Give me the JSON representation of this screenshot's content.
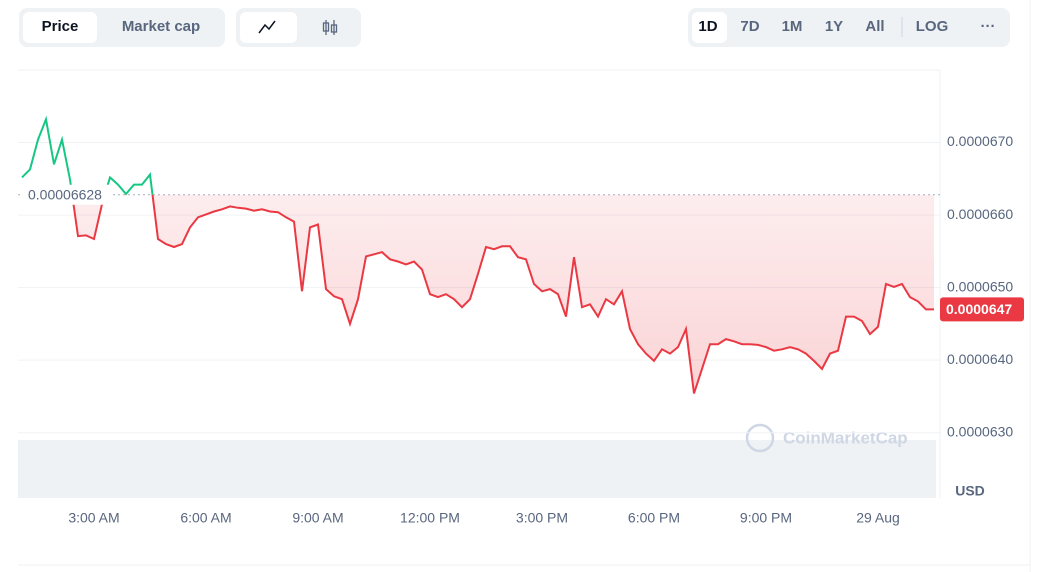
{
  "controls": {
    "tabs": [
      "Price",
      "Market cap"
    ],
    "ranges": [
      "1D",
      "7D",
      "1M",
      "1Y",
      "All",
      "LOG"
    ],
    "more": "···"
  },
  "watermark": "CoinMarketCap",
  "chart_data": {
    "type": "line",
    "ylabel": "USD",
    "ylim": [
      6.21e-05,
      6.8e-05
    ],
    "yticks": [
      {
        "value": 6.3e-05,
        "label": "0.0000630"
      },
      {
        "value": 6.4e-05,
        "label": "0.0000640"
      },
      {
        "value": 6.5e-05,
        "label": "0.0000650"
      },
      {
        "value": 6.6e-05,
        "label": "0.0000660"
      },
      {
        "value": 6.7e-05,
        "label": "0.0000670"
      }
    ],
    "grid": true,
    "baseline": 6.628e-05,
    "color_above": "#16c784",
    "color_below": "#ea3943",
    "categories": [
      null,
      null,
      null,
      null,
      null,
      null,
      null,
      null,
      null,
      "3:00 AM",
      null,
      null,
      null,
      null,
      null,
      null,
      null,
      null,
      null,
      null,
      null,
      null,
      null,
      "6:00 AM",
      null,
      null,
      null,
      null,
      null,
      null,
      null,
      null,
      null,
      null,
      null,
      null,
      null,
      "9:00 AM",
      null,
      null,
      null,
      null,
      null,
      null,
      null,
      null,
      null,
      null,
      null,
      null,
      null,
      "12:00 PM",
      null,
      null,
      null,
      null,
      null,
      null,
      null,
      null,
      null,
      null,
      null,
      null,
      null,
      "3:00 PM",
      null,
      null,
      null,
      null,
      null,
      null,
      null,
      null,
      null,
      null,
      null,
      null,
      null,
      "6:00 PM",
      null,
      null,
      null,
      null,
      null,
      null,
      null,
      null,
      null,
      null,
      null,
      null,
      null,
      "9:00 PM",
      null,
      null,
      null,
      null,
      null,
      null,
      null,
      null,
      null,
      null,
      null,
      null,
      null,
      "29 Aug",
      null,
      null,
      null,
      null,
      null,
      null,
      null
    ],
    "series": [
      {
        "name": "Price",
        "values": [
          6.652e-05,
          6.663e-05,
          6.704e-05,
          6.732e-05,
          6.67e-05,
          6.704e-05,
          6.649e-05,
          6.571e-05,
          6.572e-05,
          6.567e-05,
          6.615e-05,
          6.652e-05,
          6.642e-05,
          6.629e-05,
          6.642e-05,
          6.642e-05,
          6.656e-05,
          6.567e-05,
          6.56e-05,
          6.556e-05,
          6.56e-05,
          6.583e-05,
          6.597e-05,
          6.601e-05,
          6.605e-05,
          6.608e-05,
          6.612e-05,
          6.61e-05,
          6.609e-05,
          6.606e-05,
          6.608e-05,
          6.605e-05,
          6.604e-05,
          6.597e-05,
          6.591e-05,
          6.495e-05,
          6.583e-05,
          6.587e-05,
          6.498e-05,
          6.488e-05,
          6.484e-05,
          6.45e-05,
          6.484e-05,
          6.543e-05,
          6.546e-05,
          6.549e-05,
          6.539e-05,
          6.536e-05,
          6.532e-05,
          6.536e-05,
          6.525e-05,
          6.491e-05,
          6.487e-05,
          6.491e-05,
          6.484e-05,
          6.473e-05,
          6.484e-05,
          6.519e-05,
          6.556e-05,
          6.553e-05,
          6.557e-05,
          6.557e-05,
          6.542e-05,
          6.539e-05,
          6.505e-05,
          6.495e-05,
          6.498e-05,
          6.491e-05,
          6.46e-05,
          6.542e-05,
          6.473e-05,
          6.477e-05,
          6.46e-05,
          6.484e-05,
          6.477e-05,
          6.495e-05,
          6.443e-05,
          6.422e-05,
          6.409e-05,
          6.399e-05,
          6.415e-05,
          6.409e-05,
          6.418e-05,
          6.443e-05,
          6.354e-05,
          6.388e-05,
          6.422e-05,
          6.422e-05,
          6.429e-05,
          6.426e-05,
          6.422e-05,
          6.422e-05,
          6.421e-05,
          6.418e-05,
          6.413e-05,
          6.415e-05,
          6.418e-05,
          6.415e-05,
          6.409e-05,
          6.399e-05,
          6.388e-05,
          6.409e-05,
          6.413e-05,
          6.46e-05,
          6.46e-05,
          6.454e-05,
          6.436e-05,
          6.446e-05,
          6.505e-05,
          6.501e-05,
          6.505e-05,
          6.487e-05,
          6.481e-05,
          6.47e-05,
          6.47e-05
        ]
      }
    ]
  }
}
